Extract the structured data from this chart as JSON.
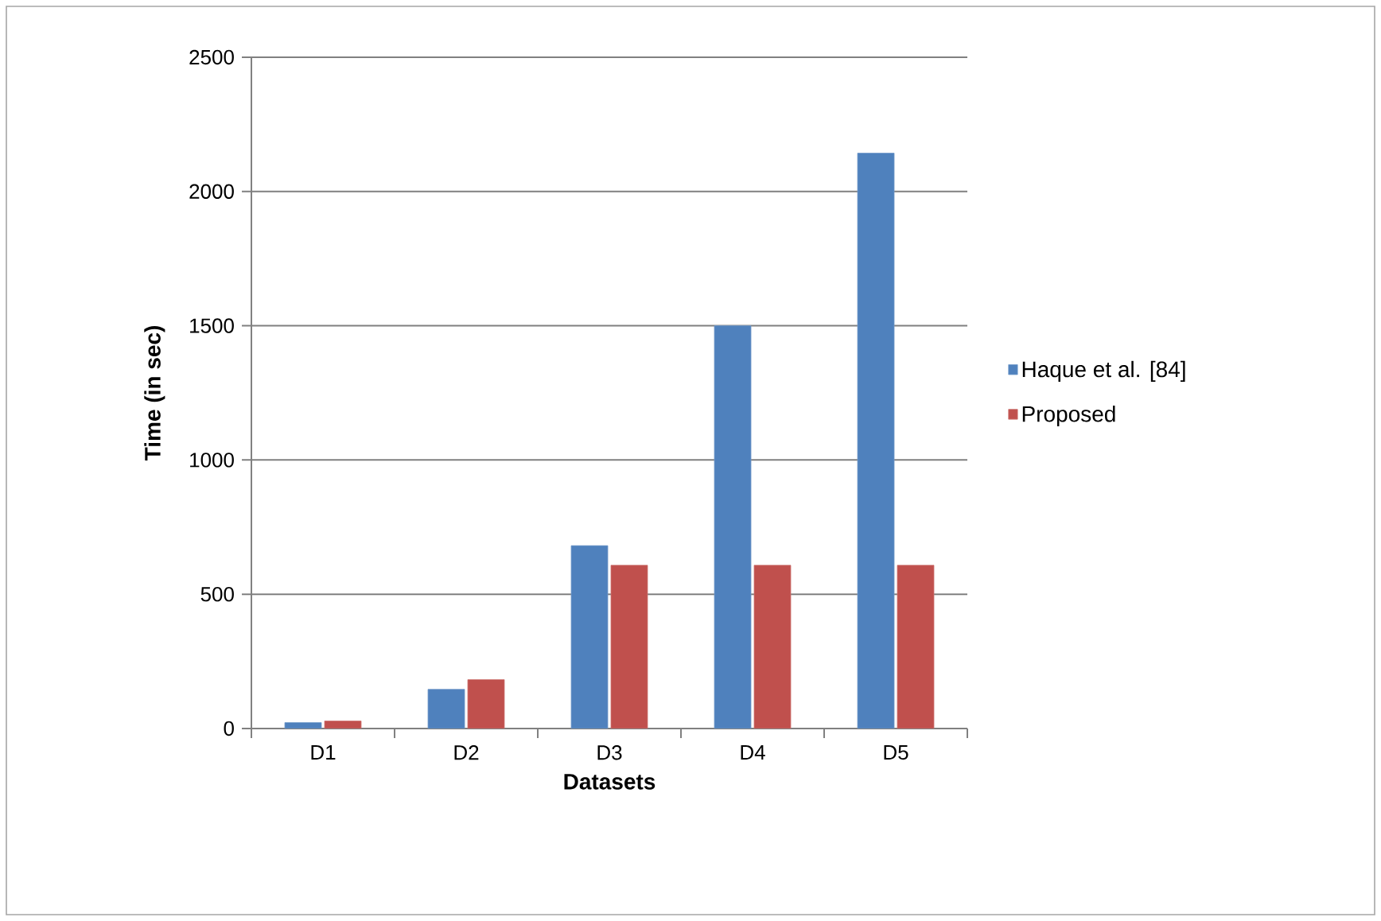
{
  "chart_data": {
    "type": "bar",
    "xlabel": "Datasets",
    "ylabel": "Time (in sec)",
    "categories": [
      "D1",
      "D2",
      "D3",
      "D4",
      "D5"
    ],
    "series": [
      {
        "name": "Haque et al. [84]",
        "color": "#4f81bd",
        "values": [
          22,
          146,
          681,
          1500,
          2143
        ]
      },
      {
        "name": "Proposed",
        "color": "#c0504d",
        "values": [
          28,
          182,
          608,
          608,
          608
        ]
      }
    ],
    "ylim": [
      0,
      2500
    ],
    "yticks": [
      0,
      500,
      1000,
      1500,
      2000,
      2500
    ],
    "grid": "y",
    "legend": "right"
  }
}
